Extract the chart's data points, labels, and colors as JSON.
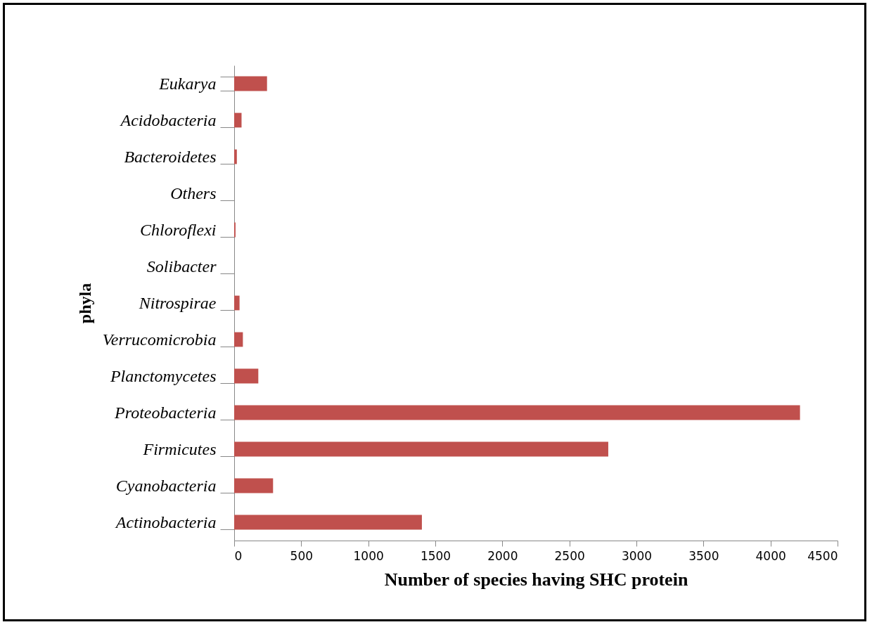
{
  "chart_data": {
    "type": "bar",
    "orientation": "horizontal",
    "xlabel": "Number of species having SHC protein",
    "ylabel": "phyla",
    "categories": [
      "Eukarya",
      "Acidobacteria",
      "Bacteroidetes",
      "Others",
      "Chloroflexi",
      "Solibacter",
      "Nitrospirae",
      "Verrucomicrobia",
      "Planctomycetes",
      "Proteobacteria",
      "Firmicutes",
      "Cyanobacteria",
      "Actinobacteria"
    ],
    "values": [
      245,
      55,
      20,
      0,
      10,
      null,
      40,
      65,
      180,
      4220,
      2790,
      290,
      1400
    ],
    "color": "#c0504d",
    "xlim": [
      0,
      4500
    ],
    "xticks": [
      0,
      500,
      1000,
      1500,
      2000,
      2500,
      3000,
      3500,
      4000,
      4500
    ],
    "grid": false
  }
}
